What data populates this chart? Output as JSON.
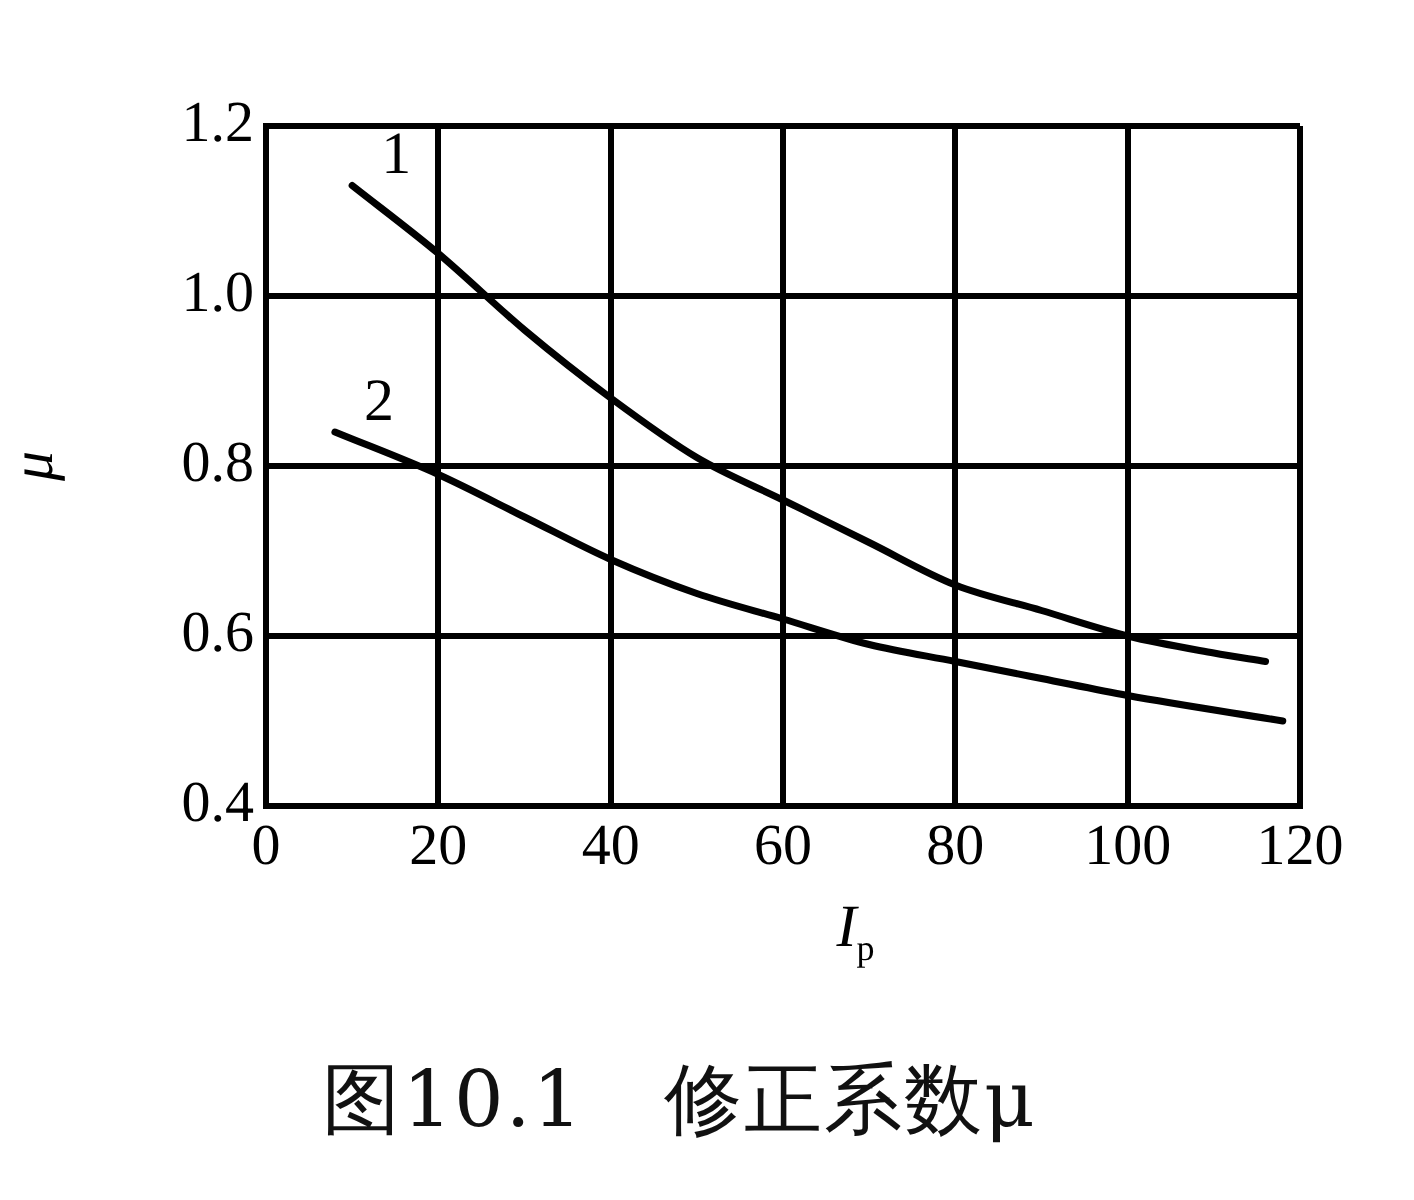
{
  "chart_data": {
    "type": "line",
    "xlabel": "I$_{p}$",
    "ylabel": "μ",
    "annotations": [
      "图10.1　修正系数μ"
    ],
    "xlim": [
      0,
      120
    ],
    "ylim": [
      0.4,
      1.2
    ],
    "xticks": [
      0,
      20,
      40,
      60,
      80,
      100,
      120
    ],
    "yticks": [
      0.4,
      0.6,
      0.8,
      {
        "value": 1.0,
        "label": "1.0"
      },
      1.2
    ],
    "grid": true,
    "legend": false,
    "marker": "none",
    "line_style": "solid",
    "series": [
      {
        "name": "1",
        "color": "#000000",
        "x": [
          10,
          20,
          30,
          40,
          50,
          60,
          70,
          80,
          90,
          100,
          110,
          116
        ],
        "values": [
          1.13,
          1.05,
          0.96,
          0.88,
          0.81,
          0.76,
          0.71,
          0.66,
          0.63,
          0.6,
          0.58,
          0.57
        ]
      },
      {
        "name": "2",
        "color": "#000000",
        "x": [
          8,
          20,
          30,
          40,
          50,
          60,
          70,
          80,
          90,
          100,
          118
        ],
        "values": [
          0.84,
          0.79,
          0.74,
          0.69,
          0.65,
          0.62,
          0.59,
          0.57,
          0.55,
          0.53,
          0.5
        ]
      }
    ]
  }
}
